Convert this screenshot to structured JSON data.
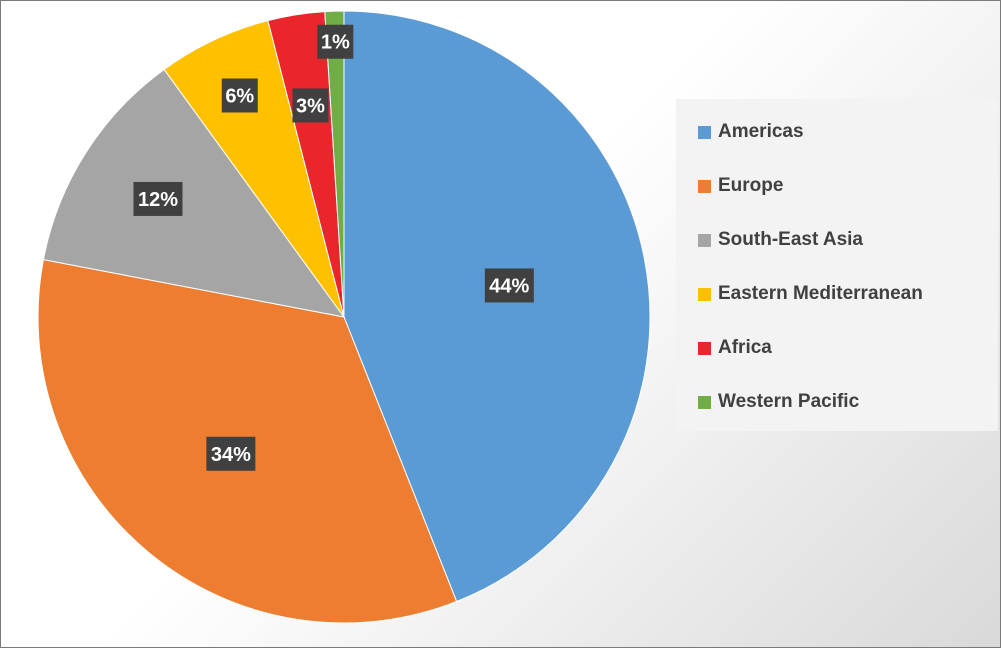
{
  "chart_data": {
    "type": "pie",
    "categories": [
      "Americas",
      "Europe",
      "South-East Asia",
      "Eastern Mediterranean",
      "Africa",
      "Western Pacific"
    ],
    "values": [
      44,
      34,
      12,
      6,
      3,
      1
    ],
    "data_labels": [
      "44%",
      "34%",
      "12%",
      "6%",
      "3%",
      "1%"
    ],
    "colors": [
      "#5b9bd5",
      "#ed7d31",
      "#a5a5a5",
      "#ffc000",
      "#e8262b",
      "#70ad47"
    ],
    "start_angle": "12 o'clock",
    "direction": "clockwise",
    "legend": "right",
    "data_label_style": "white bold text on dark gray box"
  }
}
